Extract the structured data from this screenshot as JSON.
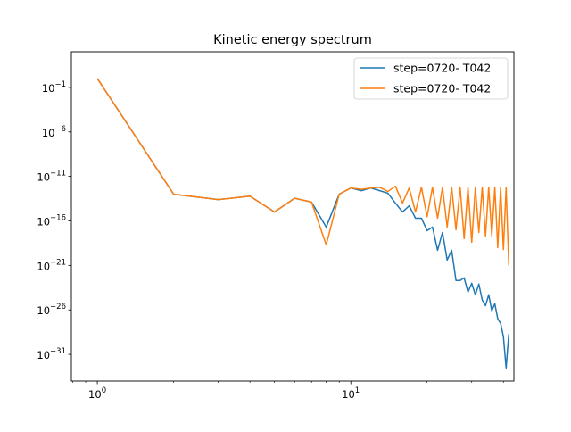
{
  "chart_data": {
    "type": "line",
    "title": "Kinetic energy spectrum",
    "xlabel": "",
    "ylabel": "",
    "xscale": "log",
    "yscale": "log",
    "xlim": [
      0.79,
      44
    ],
    "ylim": [
      1e-34,
      1000.0
    ],
    "x_ticks": [
      {
        "value": 1,
        "base": "10",
        "exp": "0"
      },
      {
        "value": 10,
        "base": "10",
        "exp": "1"
      }
    ],
    "y_ticks": [
      {
        "value": 0.1,
        "base": "10",
        "exp": "−1"
      },
      {
        "value": 1e-06,
        "base": "10",
        "exp": "−6"
      },
      {
        "value": 1e-11,
        "base": "10",
        "exp": "−11"
      },
      {
        "value": 1e-16,
        "base": "10",
        "exp": "−16"
      },
      {
        "value": 1e-21,
        "base": "10",
        "exp": "−21"
      },
      {
        "value": 1e-26,
        "base": "10",
        "exp": "−26"
      },
      {
        "value": 1e-31,
        "base": "10",
        "exp": "−31"
      }
    ],
    "legend": {
      "position": "top-right"
    },
    "grid": false,
    "series": [
      {
        "name": "step=0720- T042",
        "color": "#1f77b4",
        "x": [
          1,
          2,
          3,
          4,
          5,
          6,
          7,
          8,
          9,
          10,
          11,
          12,
          13,
          14,
          15,
          16,
          17,
          18,
          19,
          20,
          21,
          22,
          23,
          24,
          25,
          26,
          27,
          28,
          29,
          30,
          31,
          32,
          33,
          34,
          35,
          36,
          37,
          38,
          39,
          40,
          41,
          42
        ],
        "y": [
          1,
          1e-13,
          2.5e-14,
          6e-14,
          1e-15,
          3.5e-14,
          1.3e-14,
          2e-17,
          1e-13,
          5e-13,
          2.5e-13,
          5e-13,
          2.5e-13,
          1.3e-13,
          1e-14,
          1e-15,
          5e-15,
          2e-16,
          2e-16,
          8e-18,
          2e-17,
          5e-20,
          5e-18,
          4e-21,
          5e-20,
          2e-23,
          2e-23,
          4e-23,
          1e-24,
          1e-23,
          5e-25,
          8e-24,
          1.3e-25,
          3e-26,
          5e-25,
          8e-27,
          5e-26,
          1e-27,
          3e-28,
          1e-29,
          3e-33,
          2e-29
        ]
      },
      {
        "name": "step=0720- T042",
        "color": "#ff7f0e",
        "x": [
          1,
          2,
          3,
          4,
          5,
          6,
          7,
          8,
          9,
          10,
          11,
          12,
          13,
          14,
          15,
          16,
          17,
          18,
          19,
          20,
          21,
          22,
          23,
          24,
          25,
          26,
          27,
          28,
          29,
          30,
          31,
          32,
          33,
          34,
          35,
          36,
          37,
          38,
          39,
          40,
          41,
          42
        ],
        "y": [
          1,
          1e-13,
          2.5e-14,
          6e-14,
          1e-15,
          3.5e-14,
          1.3e-14,
          2e-19,
          1e-13,
          5e-13,
          3.5e-13,
          5e-13,
          6e-13,
          2e-13,
          8e-13,
          1e-14,
          5e-13,
          1e-15,
          6e-13,
          3e-16,
          6e-13,
          2e-16,
          6e-13,
          2e-17,
          6e-13,
          1e-17,
          6e-13,
          1e-18,
          6e-13,
          4e-19,
          6e-13,
          5e-18,
          6e-13,
          2e-18,
          6e-13,
          2e-18,
          6e-13,
          1e-19,
          6e-13,
          6e-20,
          6e-13,
          1e-21
        ]
      }
    ]
  }
}
